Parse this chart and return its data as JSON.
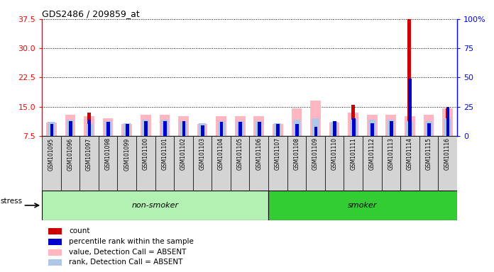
{
  "title": "GDS2486 / 209859_at",
  "samples": [
    "GSM101095",
    "GSM101096",
    "GSM101097",
    "GSM101098",
    "GSM101099",
    "GSM101100",
    "GSM101101",
    "GSM101102",
    "GSM101103",
    "GSM101104",
    "GSM101105",
    "GSM101106",
    "GSM101107",
    "GSM101108",
    "GSM101109",
    "GSM101110",
    "GSM101111",
    "GSM101112",
    "GSM101113",
    "GSM101114",
    "GSM101115",
    "GSM101116"
  ],
  "non_smoker_count": 12,
  "smoker_count": 10,
  "left_ylim": [
    7.5,
    37.5
  ],
  "left_yticks": [
    7.5,
    15.0,
    22.5,
    30.0,
    37.5
  ],
  "right_ylim": [
    0,
    100
  ],
  "right_yticks": [
    0,
    25,
    50,
    75,
    100
  ],
  "red_values": [
    7.5,
    7.5,
    13.5,
    7.5,
    7.5,
    7.5,
    7.5,
    7.5,
    7.5,
    7.5,
    7.5,
    7.5,
    7.5,
    7.5,
    7.5,
    7.5,
    15.5,
    7.5,
    7.5,
    37.5,
    7.5,
    14.5
  ],
  "blue_values": [
    10,
    13,
    14,
    12,
    10,
    13,
    13,
    13,
    9,
    12,
    12,
    12,
    10,
    10,
    8,
    13,
    15,
    11,
    13,
    49,
    11,
    25
  ],
  "pink_values": [
    11.0,
    13.0,
    12.5,
    12.0,
    10.5,
    13.0,
    13.0,
    12.5,
    10.5,
    12.5,
    12.5,
    12.5,
    10.5,
    14.5,
    16.5,
    11.0,
    13.5,
    13.0,
    13.0,
    12.5,
    13.0,
    14.5
  ],
  "lightblue_values": [
    12,
    14,
    10,
    13,
    11,
    14,
    14,
    13,
    11,
    13,
    13,
    13,
    11,
    14,
    15,
    12,
    14,
    14,
    14,
    13,
    13,
    15
  ],
  "background_color": "#ffffff",
  "non_smoker_color": "#b3f0b3",
  "smoker_color": "#33cc33",
  "cell_color": "#d4d4d4",
  "red_color": "#cc0000",
  "blue_color": "#0000cc",
  "pink_color": "#ffb6c1",
  "lightblue_color": "#aec6e8"
}
